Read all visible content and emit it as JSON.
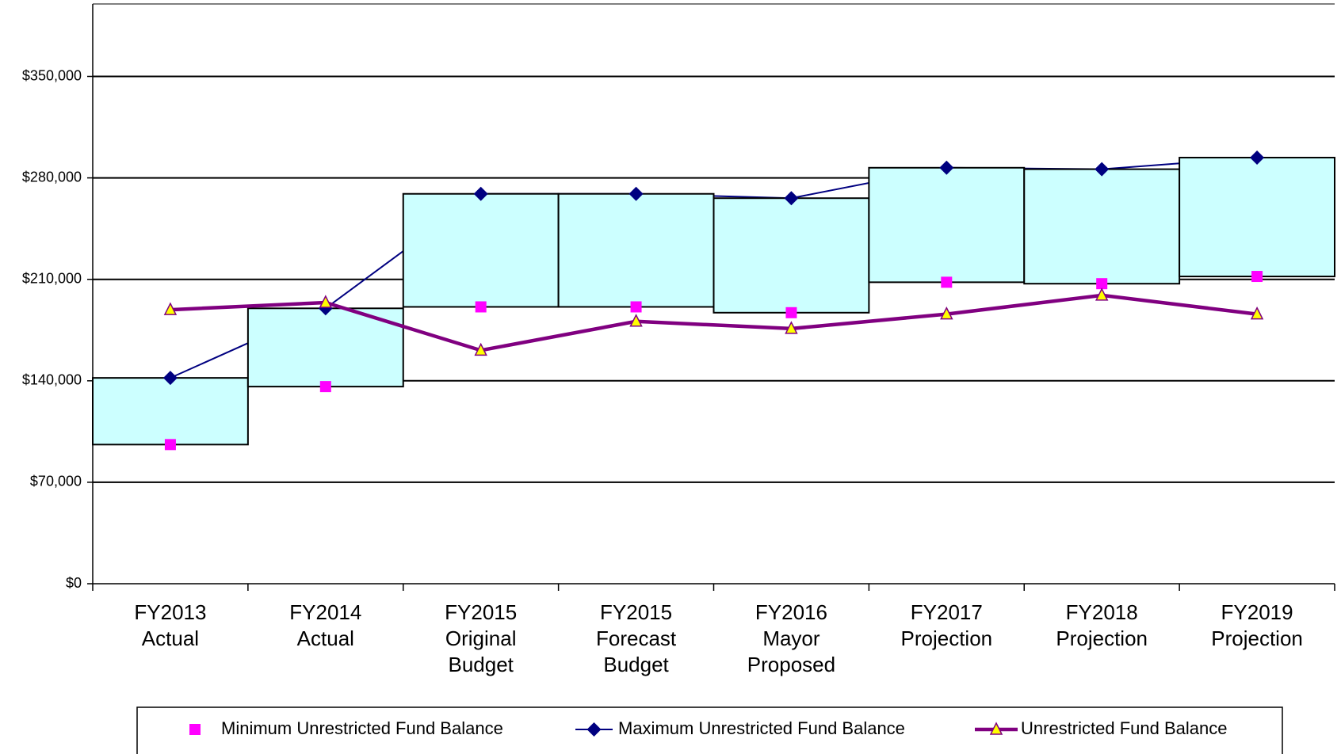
{
  "chart_data": {
    "type": "line",
    "categories": [
      "FY2013 Actual",
      "FY2014 Actual",
      "FY2015 Original Budget",
      "FY2015 Forecast Budget",
      "FY2016 Mayor Proposed",
      "FY2017 Projection",
      "FY2018 Projection",
      "FY2019 Projection"
    ],
    "series": [
      {
        "name": "Minimum Unrestricted Fund Balance",
        "color": "#ff00ff",
        "marker": "square",
        "line": false,
        "values": [
          96000,
          136000,
          191000,
          191000,
          187000,
          208000,
          207000,
          212000
        ]
      },
      {
        "name": "Maximum Unrestricted Fund Balance",
        "color": "#000080",
        "marker": "diamond",
        "line": true,
        "values": [
          142000,
          190000,
          269000,
          269000,
          266000,
          287000,
          286000,
          294000
        ]
      },
      {
        "name": "Unrestricted Fund Balance",
        "color": "#800080",
        "marker": "triangle",
        "line": true,
        "values": [
          189000,
          194000,
          161000,
          181000,
          176000,
          186000,
          199000,
          186000
        ]
      }
    ],
    "range_color": "#ccffff",
    "ylim": [
      0,
      400000
    ],
    "yticks": [
      {
        "value": 0,
        "label": "$0"
      },
      {
        "value": 70000,
        "label": "$70,000"
      },
      {
        "value": 140000,
        "label": "$140,000"
      },
      {
        "value": 210000,
        "label": "$210,000"
      },
      {
        "value": 280000,
        "label": "$280,000"
      },
      {
        "value": 350000,
        "label": "$350,000"
      }
    ],
    "grid": true,
    "legend": "bottom"
  }
}
